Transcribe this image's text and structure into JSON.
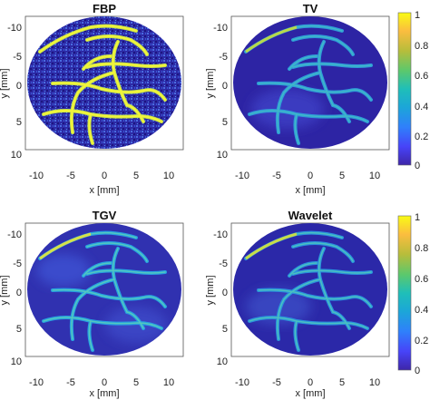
{
  "figure": {
    "panels": [
      {
        "id": "fbp",
        "title": "FBP",
        "colorbar": false
      },
      {
        "id": "tv",
        "title": "TV",
        "colorbar": true
      },
      {
        "id": "tgv",
        "title": "TGV",
        "colorbar": false
      },
      {
        "id": "wavelet",
        "title": "Wavelet",
        "colorbar": true
      }
    ],
    "xlabel": "x [mm]",
    "ylabel": "y [mm]",
    "x_ticks": [
      "-10",
      "-5",
      "0",
      "5",
      "10"
    ],
    "y_ticks": [
      "-10",
      "-5",
      "0",
      "5",
      "10"
    ],
    "colorbar_ticks": [
      "1",
      "0.8",
      "0.6",
      "0.4",
      "0.2",
      "0"
    ],
    "colormap": [
      "#3e26a8",
      "#4743f8",
      "#2f80fb",
      "#1ca6d8",
      "#1fbfb8",
      "#5cc86c",
      "#b7bd3b",
      "#fbbd3f",
      "#f9fb15"
    ],
    "background_color": "#2a20a0"
  }
}
